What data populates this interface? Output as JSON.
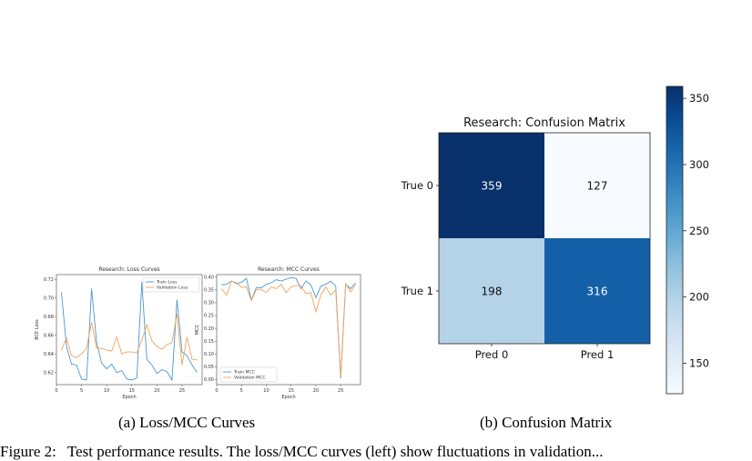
{
  "captions": {
    "a": "(a)  Loss/MCC Curves",
    "b": "(b)  Confusion Matrix"
  },
  "footer": {
    "left": "Figure 2:",
    "mid": "Test performance results. The loss/MCC curves (left) show fluctuations in validation..."
  },
  "colors": {
    "train": "#4c97d2",
    "validation": "#f4a259"
  },
  "chart_data": [
    {
      "type": "line",
      "title": "Research: Loss Curves",
      "xlabel": "Epoch",
      "ylabel": "BCE Loss",
      "xlim": [
        0,
        29
      ],
      "ylim": [
        0.607,
        0.725
      ],
      "xticks": [
        0,
        5,
        10,
        15,
        20,
        25
      ],
      "yticks": [
        0.62,
        0.64,
        0.66,
        0.68,
        0.7,
        0.72
      ],
      "ytick_labels": [
        "0.62",
        "0.64",
        "0.66",
        "0.68",
        "0.70",
        "0.72"
      ],
      "legend": "top-right",
      "x": [
        1,
        2,
        3,
        4,
        5,
        6,
        7,
        8,
        9,
        10,
        11,
        12,
        13,
        14,
        15,
        16,
        17,
        18,
        19,
        20,
        21,
        22,
        23,
        24,
        25,
        26,
        27,
        28
      ],
      "series": [
        {
          "name": "Train Loss",
          "values": [
            0.706,
            0.648,
            0.629,
            0.628,
            0.613,
            0.612,
            0.71,
            0.652,
            0.63,
            0.624,
            0.629,
            0.62,
            0.622,
            0.613,
            0.612,
            0.614,
            0.717,
            0.634,
            0.628,
            0.619,
            0.623,
            0.621,
            0.612,
            0.698,
            0.642,
            0.638,
            0.628,
            0.62
          ]
        },
        {
          "name": "Validation Loss",
          "values": [
            0.644,
            0.657,
            0.638,
            0.636,
            0.64,
            0.646,
            0.674,
            0.646,
            0.646,
            0.644,
            0.643,
            0.658,
            0.64,
            0.642,
            0.642,
            0.641,
            0.655,
            0.671,
            0.654,
            0.648,
            0.645,
            0.65,
            0.652,
            0.683,
            0.628,
            0.658,
            0.634,
            0.634
          ]
        }
      ]
    },
    {
      "type": "line",
      "title": "Research: MCC Curves",
      "xlabel": "Epoch",
      "ylabel": "MCC",
      "xlim": [
        0,
        29
      ],
      "ylim": [
        -0.02,
        0.41
      ],
      "xticks": [
        0,
        5,
        10,
        15,
        20,
        25
      ],
      "yticks": [
        0.0,
        0.05,
        0.1,
        0.15,
        0.2,
        0.25,
        0.3,
        0.35,
        0.4
      ],
      "ytick_labels": [
        "0.00",
        "0.05",
        "0.10",
        "0.15",
        "0.20",
        "0.25",
        "0.30",
        "0.35",
        "0.40"
      ],
      "legend": "bottom-left",
      "x": [
        1,
        2,
        3,
        4,
        5,
        6,
        7,
        8,
        9,
        10,
        11,
        12,
        13,
        14,
        15,
        16,
        17,
        18,
        19,
        20,
        21,
        22,
        23,
        24,
        25,
        26,
        27,
        28
      ],
      "series": [
        {
          "name": "Train MCC",
          "values": [
            0.37,
            0.372,
            0.385,
            0.375,
            0.38,
            0.395,
            0.31,
            0.36,
            0.358,
            0.372,
            0.378,
            0.39,
            0.385,
            0.392,
            0.398,
            0.395,
            0.355,
            0.385,
            0.37,
            0.32,
            0.365,
            0.372,
            0.385,
            0.365,
            0.005,
            0.372,
            0.355,
            0.378
          ]
        },
        {
          "name": "Validation MCC",
          "values": [
            0.355,
            0.33,
            0.385,
            0.378,
            0.36,
            0.362,
            0.308,
            0.352,
            0.352,
            0.34,
            0.362,
            0.355,
            0.372,
            0.34,
            0.362,
            0.368,
            0.366,
            0.335,
            0.34,
            0.265,
            0.33,
            0.362,
            0.33,
            0.35,
            0.01,
            0.375,
            0.342,
            0.372
          ]
        }
      ]
    },
    {
      "type": "heatmap",
      "title": "Research: Confusion Matrix",
      "row_labels": [
        "True 0",
        "True 1"
      ],
      "col_labels": [
        "Pred 0",
        "Pred 1"
      ],
      "values": [
        [
          359,
          127
        ],
        [
          198,
          316
        ]
      ],
      "colormap": "Blues",
      "colorbar": {
        "min": 127,
        "max": 359,
        "ticks": [
          150,
          200,
          250,
          300,
          350
        ],
        "tick_labels": [
          "150",
          "200",
          "250",
          "300",
          "350"
        ]
      }
    }
  ]
}
